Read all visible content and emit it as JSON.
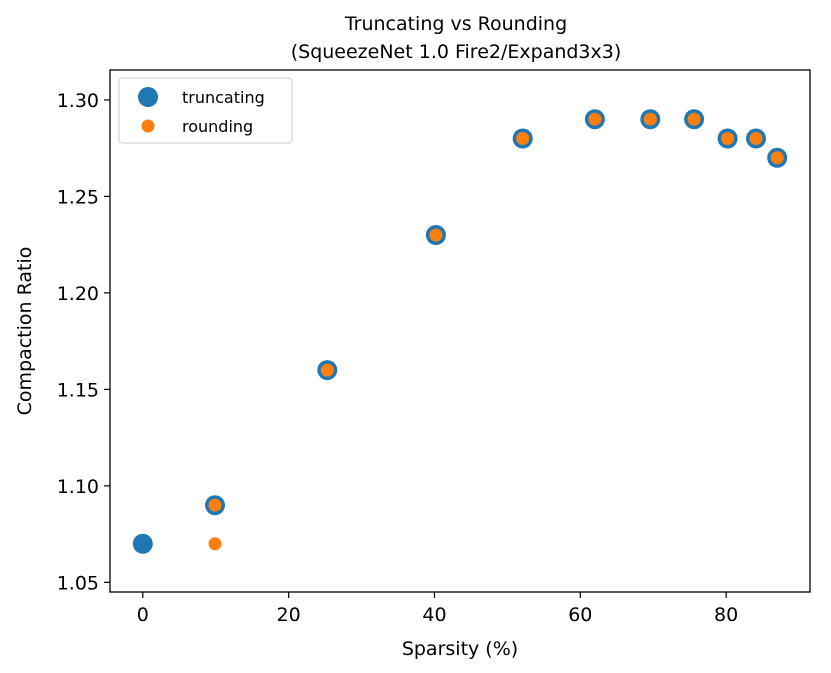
{
  "chart_data": {
    "type": "scatter",
    "title": "Truncating vs Rounding",
    "subtitle": "(SqueezeNet 1.0 Fire2/Expand3x3)",
    "xlabel": "Sparsity (%)",
    "ylabel": "Compaction Ratio",
    "xlim": [
      -4.5,
      91.5
    ],
    "ylim": [
      1.045,
      1.3155
    ],
    "xticks": [
      0,
      20,
      40,
      60,
      80
    ],
    "xtick_labels": [
      "0",
      "20",
      "40",
      "60",
      "80"
    ],
    "yticks": [
      1.05,
      1.1,
      1.15,
      1.2,
      1.25,
      1.3
    ],
    "ytick_labels": [
      "1.05",
      "1.10",
      "1.15",
      "1.20",
      "1.25",
      "1.30"
    ],
    "grid": false,
    "legend_position": "top-left",
    "series": [
      {
        "name": "truncating",
        "color": "#1f77b4",
        "marker": "large-circle",
        "x": [
          0,
          9.9,
          25.3,
          40.2,
          52.1,
          62.0,
          69.6,
          75.6,
          80.2,
          84.1,
          87.0
        ],
        "y": [
          1.07,
          1.09,
          1.16,
          1.23,
          1.28,
          1.29,
          1.29,
          1.29,
          1.28,
          1.28,
          1.27
        ]
      },
      {
        "name": "rounding",
        "color": "#ff7f0e",
        "marker": "small-circle",
        "x": [
          9.9,
          9.9,
          25.3,
          40.2,
          52.1,
          62.0,
          69.6,
          75.6,
          80.2,
          84.1,
          87.0
        ],
        "y": [
          1.07,
          1.09,
          1.16,
          1.23,
          1.28,
          1.29,
          1.29,
          1.29,
          1.28,
          1.28,
          1.27
        ]
      }
    ]
  }
}
